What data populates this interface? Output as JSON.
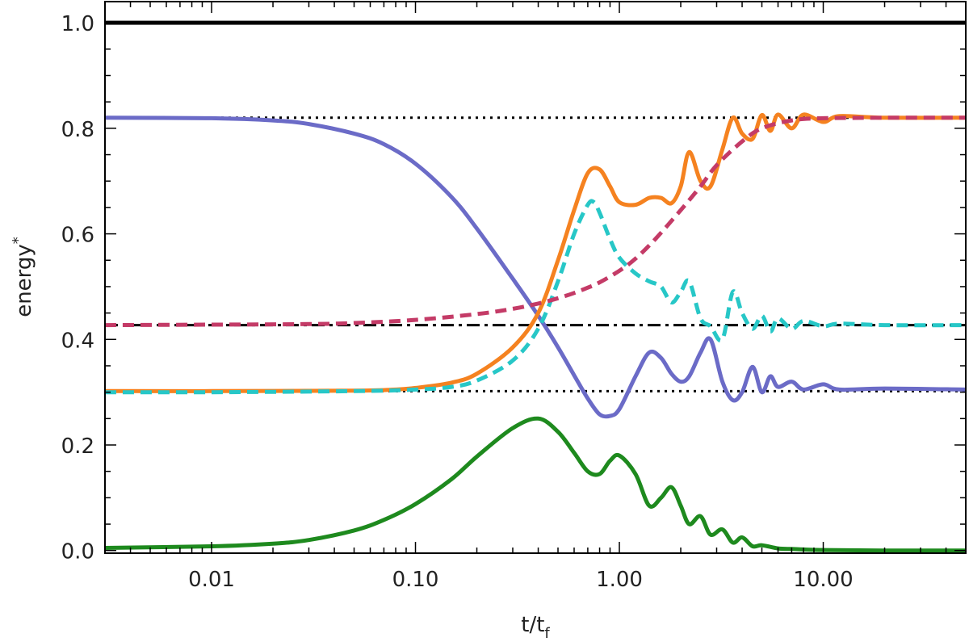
{
  "chart_data": {
    "type": "line",
    "xscale": "log",
    "xlim": [
      0.003,
      50
    ],
    "ylim": [
      -0.005,
      1.04
    ],
    "xlabel": {
      "main": "t/t",
      "sub": "f"
    },
    "ylabel": {
      "main": "energy",
      "sup": "*"
    },
    "xticks": [
      {
        "value": 0.01,
        "label": "0.01"
      },
      {
        "value": 0.1,
        "label": "0.10"
      },
      {
        "value": 1,
        "label": "1.00"
      },
      {
        "value": 10,
        "label": "10.00"
      }
    ],
    "yticks": [
      {
        "value": 0.0,
        "label": "0.0"
      },
      {
        "value": 0.2,
        "label": "0.2"
      },
      {
        "value": 0.4,
        "label": "0.4"
      },
      {
        "value": 0.6,
        "label": "0.6"
      },
      {
        "value": 0.8,
        "label": "0.8"
      },
      {
        "value": 1.0,
        "label": "1.0"
      }
    ],
    "reference_lines": [
      {
        "y": 1.0,
        "style": "solid",
        "color": "#000000"
      },
      {
        "y": 0.82,
        "style": "dotted",
        "color": "#000000"
      },
      {
        "y": 0.427,
        "style": "dashdot",
        "color": "#000000"
      },
      {
        "y": 0.302,
        "style": "dotted",
        "color": "#000000"
      }
    ],
    "series": [
      {
        "color": "#6b6bc7",
        "style": "solid",
        "x": [
          0.003,
          0.01,
          0.02,
          0.03,
          0.05,
          0.07,
          0.1,
          0.15,
          0.2,
          0.3,
          0.4,
          0.5,
          0.6,
          0.7,
          0.8,
          0.9,
          1.0,
          1.2,
          1.4,
          1.6,
          1.8,
          2.0,
          2.2,
          2.5,
          2.8,
          3.2,
          3.6,
          4.0,
          4.5,
          5.0,
          5.5,
          6.0,
          7.0,
          8.0,
          10,
          12,
          20,
          50
        ],
        "y": [
          0.82,
          0.819,
          0.815,
          0.808,
          0.79,
          0.77,
          0.733,
          0.67,
          0.61,
          0.515,
          0.445,
          0.385,
          0.332,
          0.288,
          0.258,
          0.255,
          0.268,
          0.33,
          0.375,
          0.365,
          0.335,
          0.32,
          0.33,
          0.375,
          0.4,
          0.32,
          0.285,
          0.3,
          0.348,
          0.3,
          0.33,
          0.31,
          0.32,
          0.305,
          0.315,
          0.305,
          0.307,
          0.305
        ]
      },
      {
        "color": "#f58220",
        "style": "solid",
        "x": [
          0.003,
          0.01,
          0.05,
          0.08,
          0.1,
          0.15,
          0.2,
          0.3,
          0.4,
          0.5,
          0.6,
          0.7,
          0.8,
          0.9,
          1.0,
          1.2,
          1.4,
          1.6,
          1.8,
          2.0,
          2.2,
          2.5,
          2.8,
          3.2,
          3.6,
          4.0,
          4.5,
          5.0,
          5.5,
          6.0,
          7.0,
          8.0,
          10,
          12,
          20,
          50
        ],
        "y": [
          0.302,
          0.302,
          0.303,
          0.305,
          0.308,
          0.318,
          0.335,
          0.385,
          0.45,
          0.55,
          0.645,
          0.715,
          0.722,
          0.69,
          0.66,
          0.655,
          0.668,
          0.668,
          0.658,
          0.69,
          0.755,
          0.7,
          0.69,
          0.76,
          0.82,
          0.79,
          0.78,
          0.825,
          0.795,
          0.826,
          0.8,
          0.826,
          0.812,
          0.823,
          0.82,
          0.82
        ]
      },
      {
        "color": "#27c7c7",
        "style": "dashed",
        "x": [
          0.003,
          0.01,
          0.05,
          0.1,
          0.15,
          0.2,
          0.3,
          0.4,
          0.5,
          0.6,
          0.7,
          0.75,
          0.8,
          0.9,
          1.0,
          1.2,
          1.4,
          1.6,
          1.8,
          2.0,
          2.2,
          2.5,
          2.8,
          3.2,
          3.6,
          4.0,
          4.5,
          5.0,
          5.5,
          6.0,
          7.0,
          8.0,
          10,
          12,
          20,
          50
        ],
        "y": [
          0.3,
          0.3,
          0.302,
          0.305,
          0.31,
          0.322,
          0.36,
          0.42,
          0.51,
          0.6,
          0.655,
          0.66,
          0.64,
          0.59,
          0.555,
          0.525,
          0.51,
          0.5,
          0.47,
          0.49,
          0.51,
          0.44,
          0.425,
          0.4,
          0.49,
          0.45,
          0.42,
          0.445,
          0.415,
          0.44,
          0.42,
          0.435,
          0.425,
          0.43,
          0.427,
          0.427
        ]
      },
      {
        "color": "#c43b67",
        "style": "dashed",
        "x": [
          0.003,
          0.01,
          0.03,
          0.05,
          0.1,
          0.2,
          0.3,
          0.4,
          0.5,
          0.6,
          0.7,
          0.8,
          1.0,
          1.2,
          1.5,
          2.0,
          2.5,
          3.0,
          4.0,
          5.0,
          7.0,
          10,
          20,
          50
        ],
        "y": [
          0.427,
          0.428,
          0.429,
          0.431,
          0.437,
          0.448,
          0.458,
          0.468,
          0.478,
          0.488,
          0.498,
          0.508,
          0.53,
          0.553,
          0.59,
          0.645,
          0.69,
          0.73,
          0.775,
          0.8,
          0.815,
          0.819,
          0.82,
          0.82
        ]
      },
      {
        "color": "#1e8a1e",
        "style": "solid",
        "x": [
          0.003,
          0.01,
          0.02,
          0.03,
          0.05,
          0.07,
          0.1,
          0.15,
          0.2,
          0.3,
          0.4,
          0.5,
          0.6,
          0.7,
          0.8,
          0.9,
          1.0,
          1.2,
          1.4,
          1.6,
          1.8,
          2.0,
          2.2,
          2.5,
          2.8,
          3.2,
          3.6,
          4.0,
          4.5,
          5.0,
          6.0,
          7.0,
          8.0,
          10,
          20,
          50
        ],
        "y": [
          0.005,
          0.008,
          0.013,
          0.02,
          0.038,
          0.058,
          0.088,
          0.135,
          0.178,
          0.232,
          0.25,
          0.225,
          0.185,
          0.15,
          0.145,
          0.17,
          0.18,
          0.145,
          0.085,
          0.1,
          0.12,
          0.085,
          0.05,
          0.065,
          0.03,
          0.04,
          0.015,
          0.025,
          0.008,
          0.01,
          0.004,
          0.003,
          0.002,
          0.001,
          0.0,
          0.0
        ]
      }
    ]
  }
}
